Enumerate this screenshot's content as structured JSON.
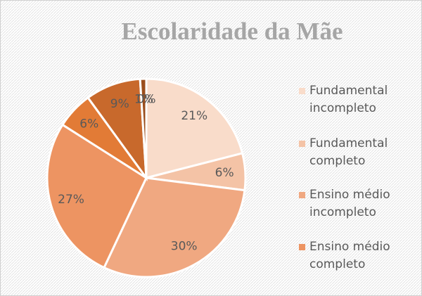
{
  "chart_data": {
    "type": "pie",
    "title": "Escolaridade da Mãe",
    "categories": [
      "Fundamental incompleto",
      "Fundamental completo",
      "Ensino médio incompleto",
      "Ensino médio completo",
      null,
      null,
      null,
      null
    ],
    "values": [
      21,
      6,
      30,
      27,
      6,
      9,
      1,
      0
    ],
    "value_labels": [
      "21%",
      "6%",
      "30%",
      "27%",
      "6%",
      "9%",
      "1%",
      "0%"
    ],
    "colors": [
      "#f9dcca",
      "#f4c3a6",
      "#f0a881",
      "#ed9462",
      "#e27b36",
      "#c8692c",
      "#9b4e1c",
      "#7a3d14"
    ]
  }
}
